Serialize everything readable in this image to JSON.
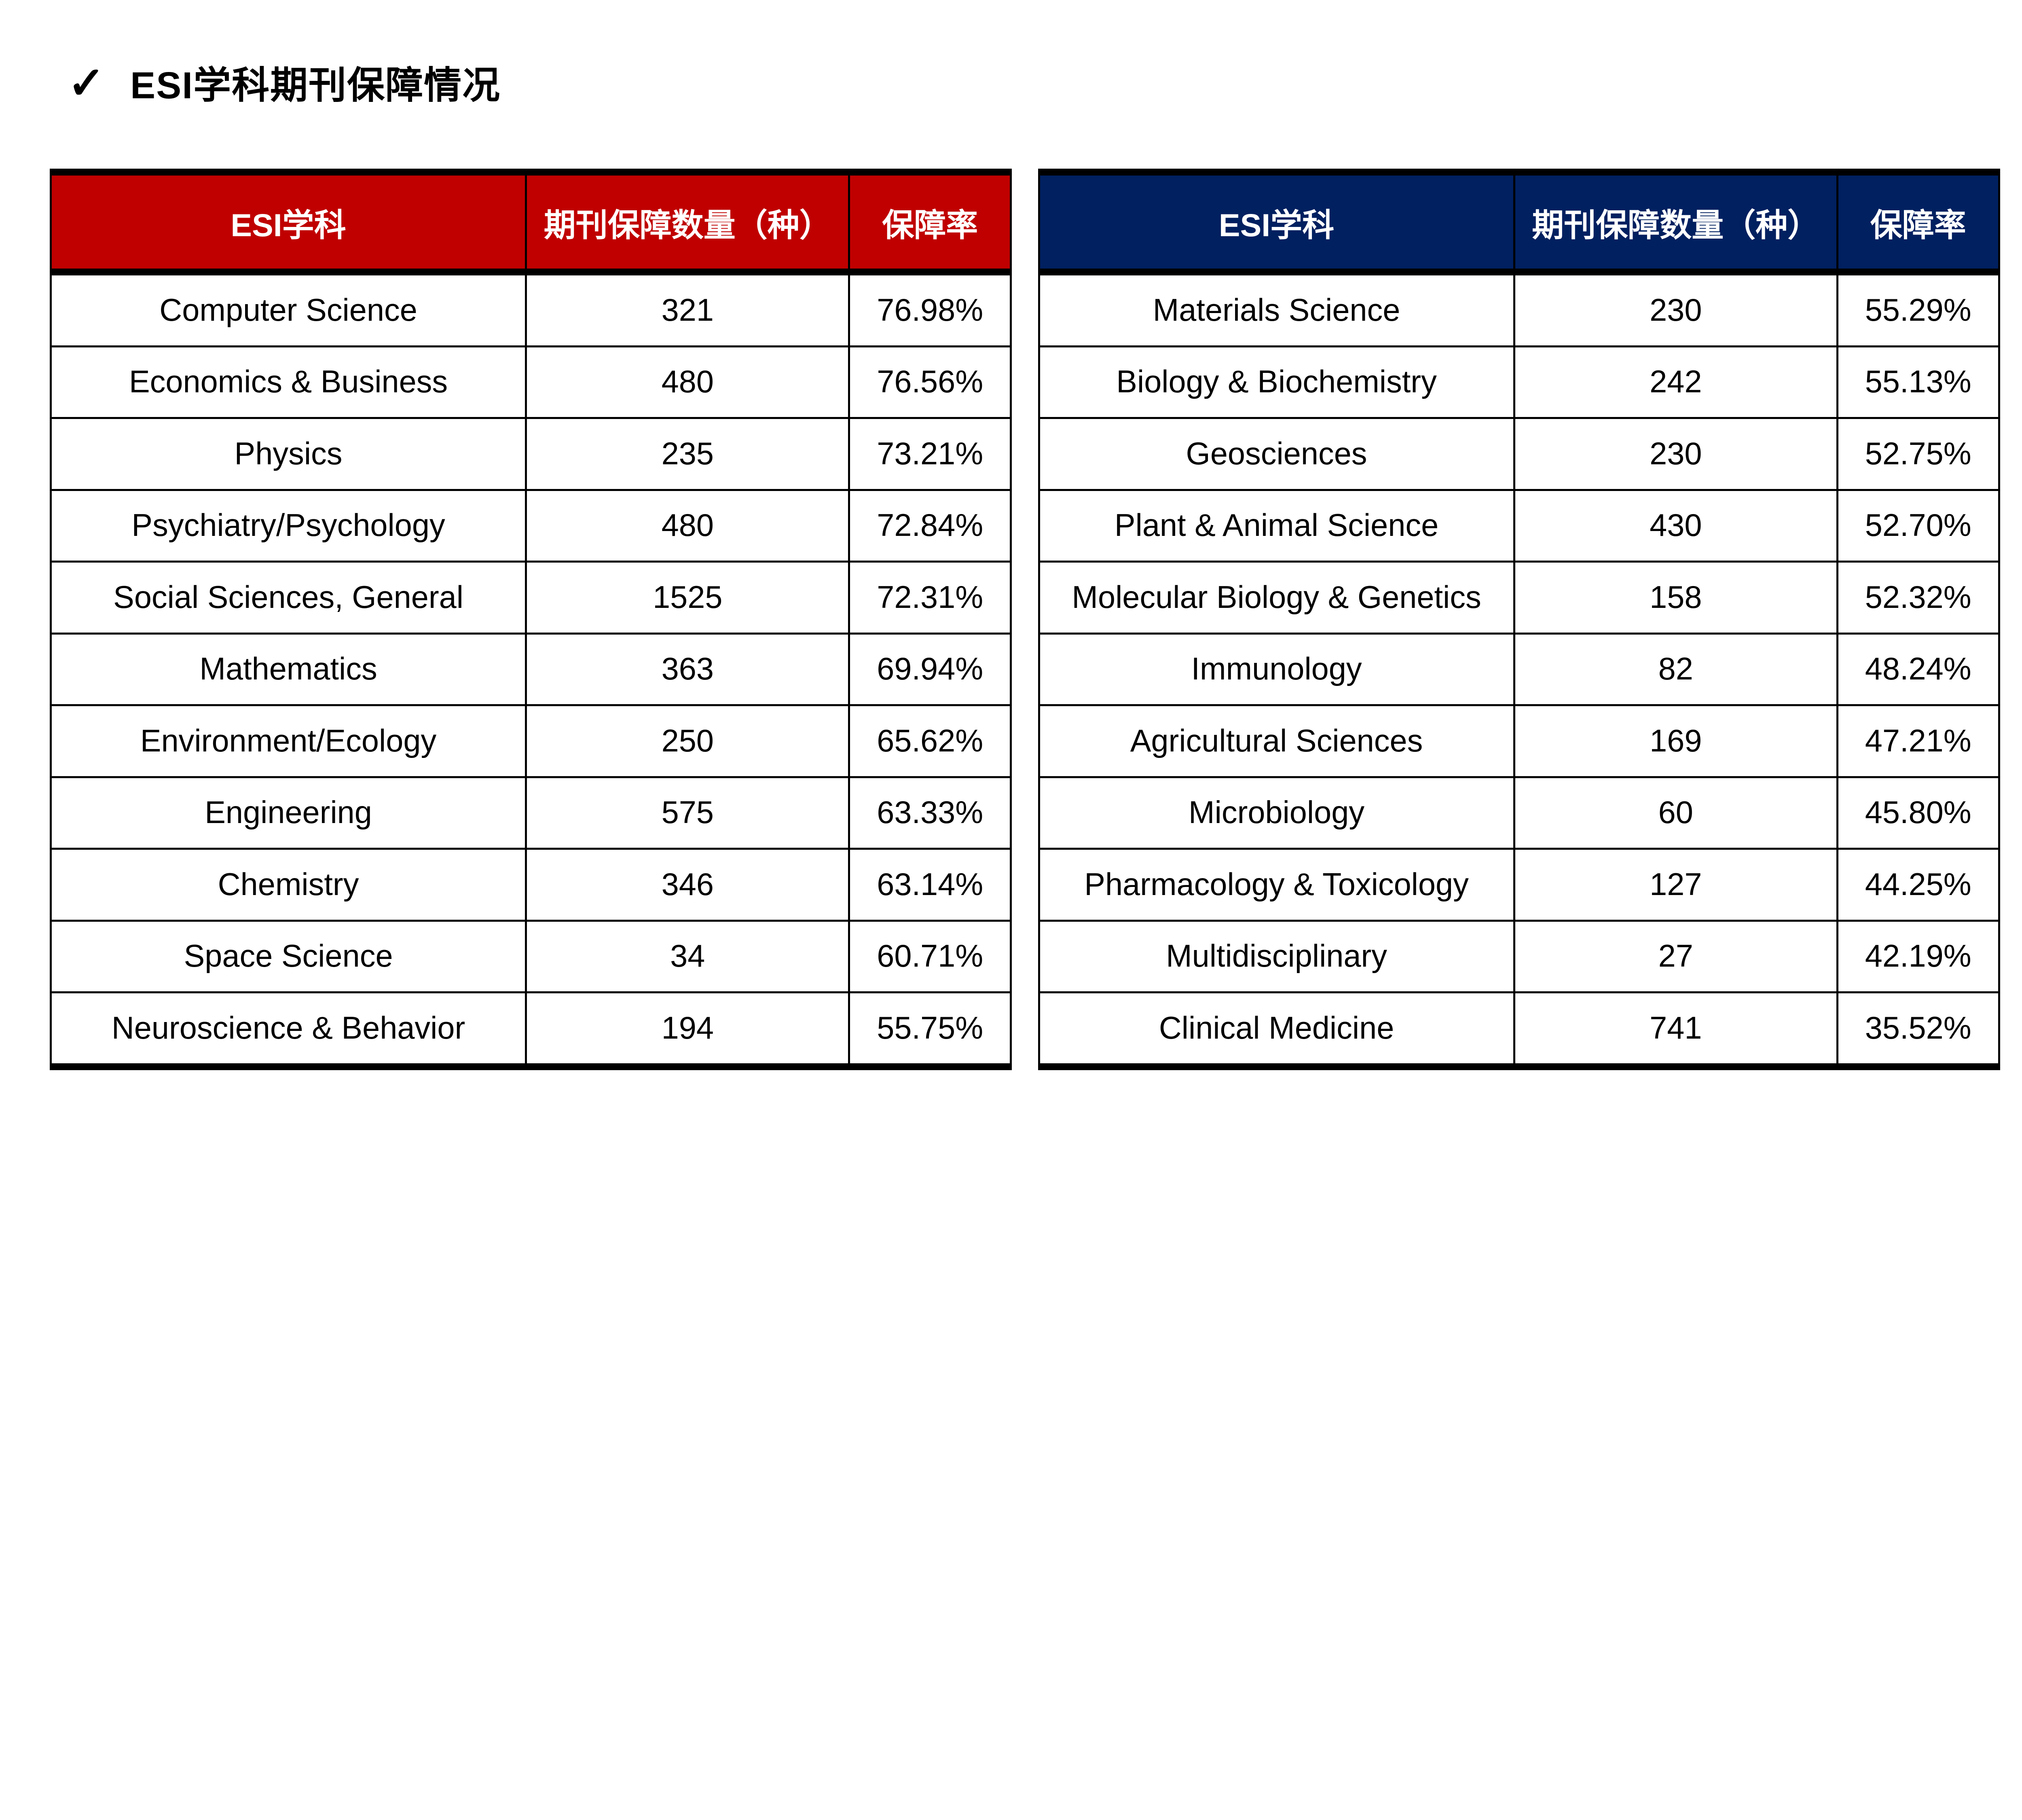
{
  "title": {
    "check_glyph": "✓",
    "text": "ESI学科期刊保障情况"
  },
  "tables": [
    {
      "side": "left",
      "header_bg": "#C00000",
      "columns": [
        "ESI学科",
        "期刊保障数量（种）",
        "保障率"
      ],
      "rows": [
        [
          "Computer Science",
          "321",
          "76.98%"
        ],
        [
          "Economics & Business",
          "480",
          "76.56%"
        ],
        [
          "Physics",
          "235",
          "73.21%"
        ],
        [
          "Psychiatry/Psychology",
          "480",
          "72.84%"
        ],
        [
          "Social Sciences, General",
          "1525",
          "72.31%"
        ],
        [
          "Mathematics",
          "363",
          "69.94%"
        ],
        [
          "Environment/Ecology",
          "250",
          "65.62%"
        ],
        [
          "Engineering",
          "575",
          "63.33%"
        ],
        [
          "Chemistry",
          "346",
          "63.14%"
        ],
        [
          "Space Science",
          "34",
          "60.71%"
        ],
        [
          "Neuroscience & Behavior",
          "194",
          "55.75%"
        ]
      ]
    },
    {
      "side": "right",
      "header_bg": "#002060",
      "columns": [
        "ESI学科",
        "期刊保障数量（种）",
        "保障率"
      ],
      "rows": [
        [
          "Materials Science",
          "230",
          "55.29%"
        ],
        [
          "Biology & Biochemistry",
          "242",
          "55.13%"
        ],
        [
          "Geosciences",
          "230",
          "52.75%"
        ],
        [
          "Plant & Animal Science",
          "430",
          "52.70%"
        ],
        [
          "Molecular Biology & Genetics",
          "158",
          "52.32%"
        ],
        [
          "Immunology",
          "82",
          "48.24%"
        ],
        [
          "Agricultural Sciences",
          "169",
          "47.21%"
        ],
        [
          "Microbiology",
          "60",
          "45.80%"
        ],
        [
          "Pharmacology & Toxicology",
          "127",
          "44.25%"
        ],
        [
          "Multidisciplinary",
          "27",
          "42.19%"
        ],
        [
          "Clinical Medicine",
          "741",
          "35.52%"
        ]
      ]
    }
  ]
}
